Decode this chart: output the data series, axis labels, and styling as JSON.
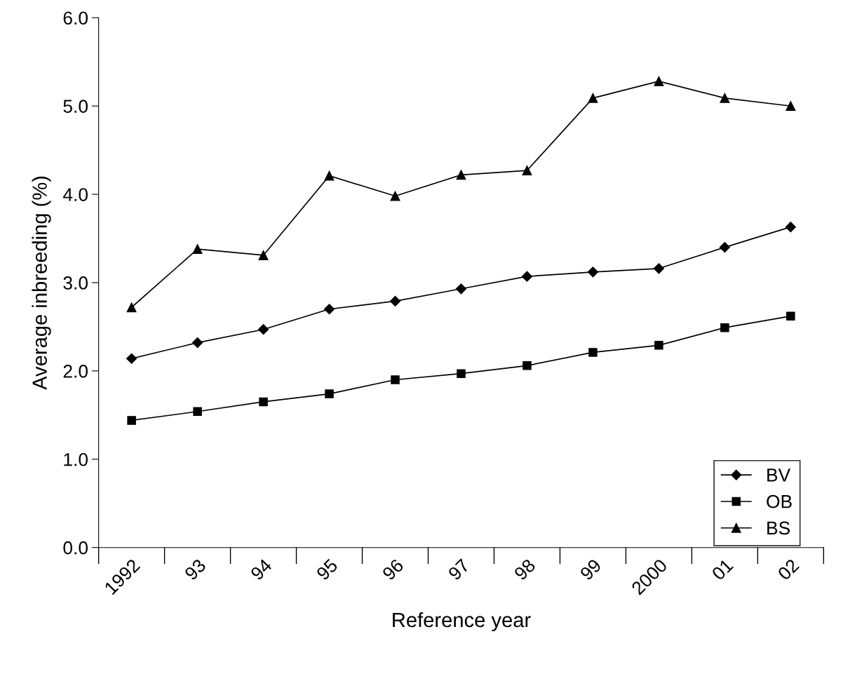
{
  "chart_data": {
    "type": "line",
    "xlabel": "Reference year",
    "ylabel": "Average inbreeding (%)",
    "categories": [
      "1992",
      "93",
      "94",
      "95",
      "96",
      "97",
      "98",
      "99",
      "2000",
      "01",
      "02"
    ],
    "series": [
      {
        "name": "BV",
        "color": "#000000",
        "marker": "diamond",
        "values": [
          2.14,
          2.32,
          2.47,
          2.7,
          2.79,
          2.93,
          3.07,
          3.12,
          3.16,
          3.4,
          3.63
        ]
      },
      {
        "name": "OB",
        "color": "#000000",
        "marker": "square",
        "values": [
          1.44,
          1.54,
          1.65,
          1.74,
          1.9,
          1.97,
          2.06,
          2.21,
          2.29,
          2.49,
          2.62
        ]
      },
      {
        "name": "BS",
        "color": "#000000",
        "marker": "triangle",
        "values": [
          2.72,
          3.38,
          3.31,
          4.21,
          3.98,
          4.22,
          4.27,
          5.09,
          5.28,
          5.09,
          5.0
        ]
      }
    ],
    "ylim": [
      0,
      6
    ],
    "yticks": [
      {
        "value": 0,
        "label": "0.0"
      },
      {
        "value": 1,
        "label": "1.0"
      },
      {
        "value": 2,
        "label": "2.0"
      },
      {
        "value": 3,
        "label": "3.0"
      },
      {
        "value": 4,
        "label": "4.0"
      },
      {
        "value": 5,
        "label": "5.0"
      },
      {
        "value": 6,
        "label": "6.0"
      }
    ],
    "grid": false,
    "legend": "bottom right",
    "line_style": "solid"
  }
}
